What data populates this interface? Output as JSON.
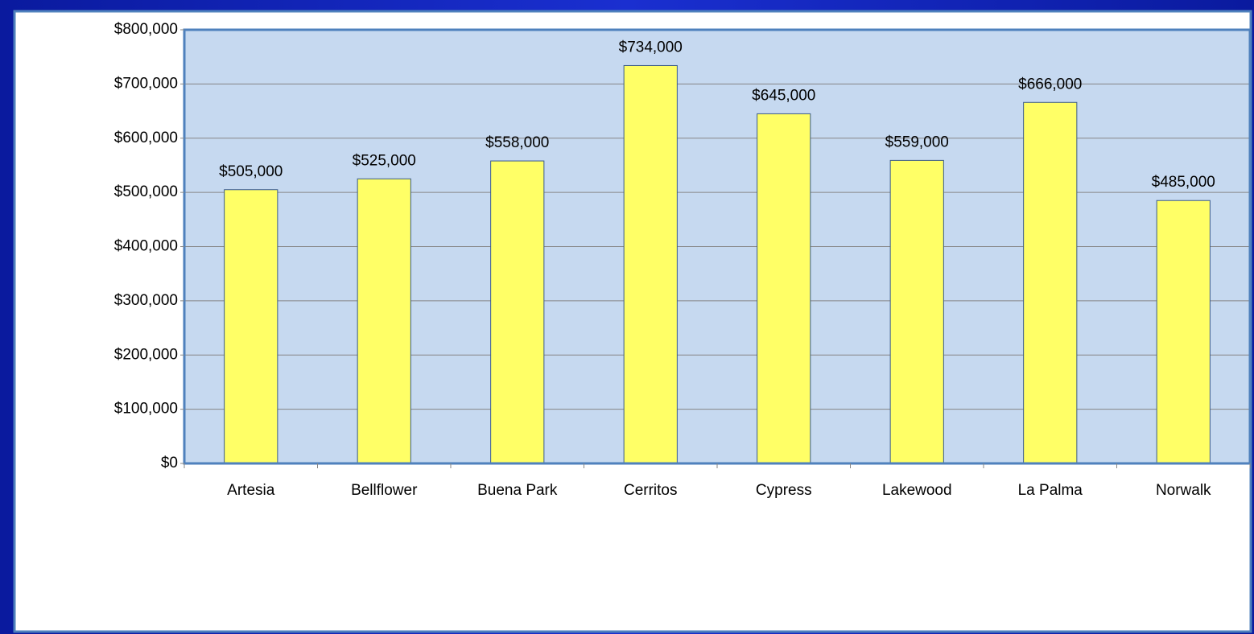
{
  "chart_data": {
    "type": "bar",
    "categories": [
      "Artesia",
      "Bellflower",
      "Buena Park",
      "Cerritos",
      "Cypress",
      "Lakewood",
      "La Palma",
      "Norwalk"
    ],
    "values": [
      505000,
      525000,
      558000,
      734000,
      645000,
      559000,
      666000,
      485000
    ],
    "value_labels": [
      "$505,000",
      "$525,000",
      "$558,000",
      "$734,000",
      "$645,000",
      "$559,000",
      "$666,000",
      "$485,000"
    ],
    "color": "#ffff66",
    "ylim": [
      0,
      800000
    ],
    "yticks": [
      {
        "value": 0,
        "label": "$0"
      },
      {
        "value": 100000,
        "label": "$100,000"
      },
      {
        "value": 200000,
        "label": "$200,000"
      },
      {
        "value": 300000,
        "label": "$300,000"
      },
      {
        "value": 400000,
        "label": "$400,000"
      },
      {
        "value": 500000,
        "label": "$500,000"
      },
      {
        "value": 600000,
        "label": "$600,000"
      },
      {
        "value": 700000,
        "label": "$700,000"
      },
      {
        "value": 800000,
        "label": "$800,000"
      }
    ],
    "grid": true
  }
}
